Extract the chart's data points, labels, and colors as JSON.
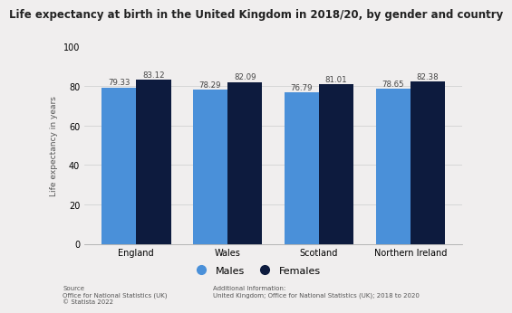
{
  "title": "Life expectancy at birth in the United Kingdom in 2018/20, by gender and country",
  "ylabel": "Life expectancy in years",
  "categories": [
    "England",
    "Wales",
    "Scotland",
    "Northern Ireland"
  ],
  "males": [
    79.33,
    78.29,
    76.79,
    78.65
  ],
  "females": [
    83.12,
    82.09,
    81.01,
    82.38
  ],
  "males_color": "#4a90d9",
  "females_color": "#0d1b3e",
  "ylim": [
    0,
    100
  ],
  "yticks": [
    0,
    20,
    40,
    60,
    80,
    100
  ],
  "bar_width": 0.38,
  "background_color": "#f0eeee",
  "title_fontsize": 8.5,
  "label_fontsize": 6.5,
  "tick_fontsize": 7,
  "annotation_fontsize": 6.2,
  "legend_labels": [
    "Males",
    "Females"
  ],
  "source_text": "Source\nOffice for National Statistics (UK)\n© Statista 2022",
  "additional_text": "Additional Information:\nUnited Kingdom; Office for National Statistics (UK); 2018 to 2020"
}
